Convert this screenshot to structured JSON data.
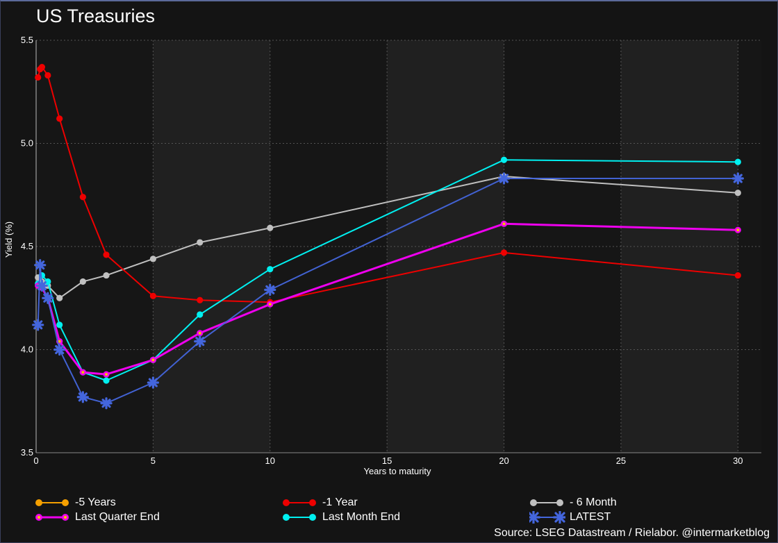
{
  "title": "US Treasuries",
  "source": "Source: LSEG Datastream /  Rielabor. @intermarketblog",
  "chart_data": {
    "type": "line",
    "xlabel": "Years to maturity",
    "ylabel": "Yield (%)",
    "xlim": [
      0,
      31
    ],
    "ylim": [
      3.5,
      5.5
    ],
    "xticks": [
      "0",
      "5",
      "10",
      "15",
      "20",
      "25",
      "30"
    ],
    "yticks": [
      "3.5",
      "4.0",
      "4.5",
      "5.0",
      "5.5"
    ],
    "grid": true,
    "legend_position": "bottom",
    "series": [
      {
        "name": "-5 Years",
        "color": "#f5a000",
        "marker": "circle",
        "x": [],
        "y": []
      },
      {
        "name": "-1 Year",
        "color": "#ee0000",
        "marker": "circle",
        "x": [
          0.08,
          0.17,
          0.25,
          0.5,
          1,
          2,
          3,
          5,
          7,
          10,
          20,
          30
        ],
        "y": [
          5.32,
          5.36,
          5.37,
          5.33,
          5.12,
          4.74,
          4.46,
          4.26,
          4.24,
          4.23,
          4.47,
          4.36
        ]
      },
      {
        "name": "- 6 Month",
        "color": "#c0c0c0",
        "marker": "circle",
        "x": [
          0.08,
          0.25,
          0.5,
          1,
          2,
          3,
          5,
          7,
          10,
          20,
          30
        ],
        "y": [
          4.35,
          4.33,
          4.31,
          4.25,
          4.33,
          4.36,
          4.44,
          4.52,
          4.59,
          4.84,
          4.76
        ]
      },
      {
        "name": "Last Quarter End",
        "color": "#ee00ee",
        "marker": "circle-yellow",
        "x": [
          0.08,
          0.25,
          0.5,
          1,
          2,
          3,
          5,
          7,
          10,
          20,
          30
        ],
        "y": [
          4.31,
          4.3,
          4.25,
          4.04,
          3.89,
          3.88,
          3.95,
          4.08,
          4.22,
          4.61,
          4.58
        ]
      },
      {
        "name": "Last Month End",
        "color": "#00f0f0",
        "marker": "circle",
        "x": [
          0.08,
          0.25,
          0.5,
          1,
          2,
          3,
          5,
          7,
          10,
          20,
          30
        ],
        "y": [
          4.32,
          4.36,
          4.33,
          4.12,
          3.89,
          3.85,
          3.95,
          4.17,
          4.39,
          4.92,
          4.91
        ]
      },
      {
        "name": "LATEST",
        "color": "#4466dd",
        "marker": "star",
        "x": [
          0.08,
          0.17,
          0.25,
          0.5,
          1,
          2,
          3,
          5,
          7,
          10,
          20,
          30
        ],
        "y": [
          4.12,
          4.41,
          4.31,
          4.25,
          4.0,
          3.77,
          3.74,
          3.84,
          4.04,
          4.29,
          4.83,
          4.83
        ]
      }
    ]
  }
}
